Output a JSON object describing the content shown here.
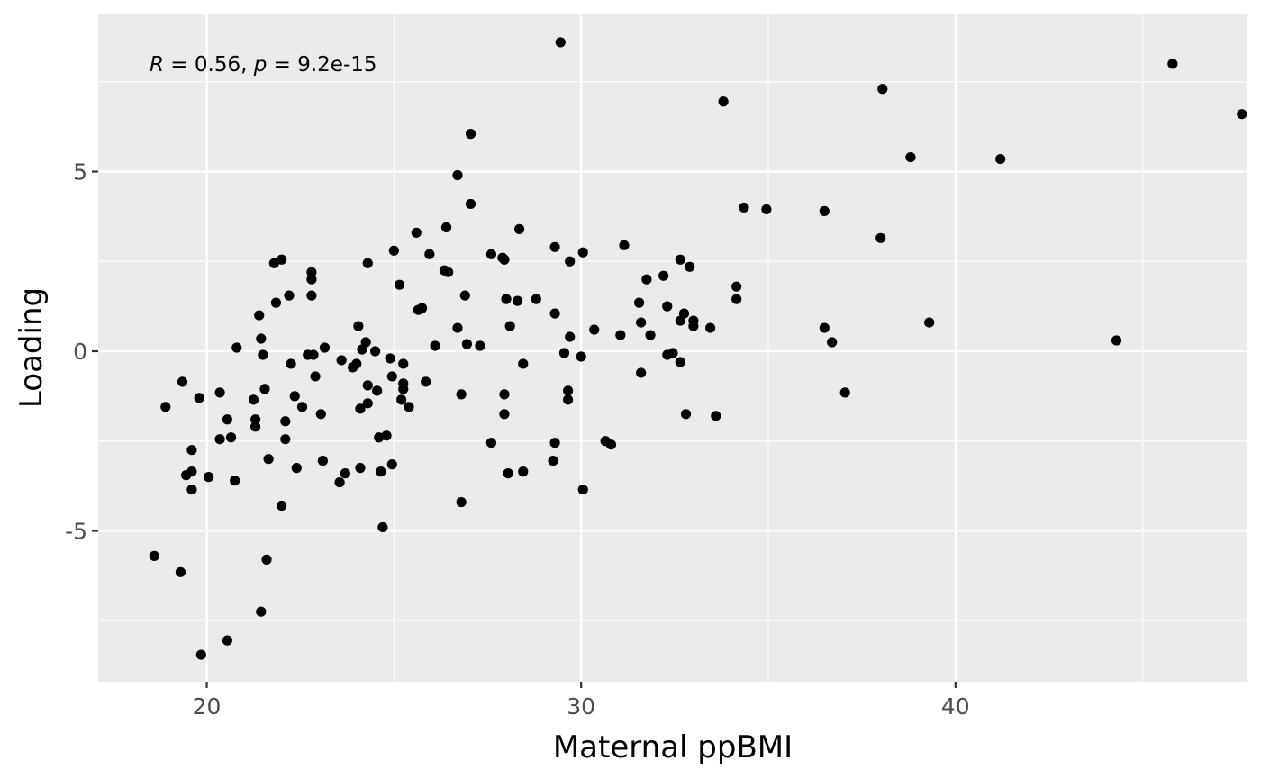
{
  "chart_data": {
    "type": "scatter",
    "title": "",
    "xlabel": "Maternal ppBMI",
    "ylabel": "Loading",
    "xlim": [
      17.1,
      47.8
    ],
    "ylim": [
      -9.2,
      9.4
    ],
    "x_ticks": [
      20,
      30,
      40
    ],
    "x_tick_labels": [
      "20",
      "30",
      "40"
    ],
    "y_ticks": [
      -5,
      0,
      5
    ],
    "y_tick_labels": [
      "-5",
      "0",
      "5"
    ],
    "grid": true,
    "panel_background": "#ebebeb",
    "grid_color": "#ffffff",
    "point_color": "#000000",
    "annotation": {
      "r_symbol": "R",
      "r_text": " = 0.56, ",
      "p_symbol": "p",
      "p_text": " = 9.2e-15"
    },
    "points": [
      [
        18.6,
        -5.7
      ],
      [
        18.9,
        -1.55
      ],
      [
        19.3,
        -6.15
      ],
      [
        19.35,
        -0.85
      ],
      [
        19.45,
        -3.45
      ],
      [
        19.6,
        -3.35
      ],
      [
        19.6,
        -2.75
      ],
      [
        19.6,
        -3.85
      ],
      [
        19.8,
        -1.3
      ],
      [
        19.85,
        -8.45
      ],
      [
        20.05,
        -3.5
      ],
      [
        20.35,
        -1.15
      ],
      [
        20.35,
        -2.45
      ],
      [
        20.55,
        -1.9
      ],
      [
        20.55,
        -8.05
      ],
      [
        20.65,
        -2.4
      ],
      [
        20.75,
        -3.6
      ],
      [
        20.8,
        0.1
      ],
      [
        21.25,
        -1.35
      ],
      [
        21.3,
        -1.9
      ],
      [
        21.3,
        -2.1
      ],
      [
        21.4,
        1.0
      ],
      [
        21.45,
        0.35
      ],
      [
        21.45,
        -7.25
      ],
      [
        21.5,
        -0.1
      ],
      [
        21.55,
        -1.05
      ],
      [
        21.6,
        -5.8
      ],
      [
        21.65,
        -3.0
      ],
      [
        21.8,
        2.45
      ],
      [
        21.85,
        1.35
      ],
      [
        22.0,
        2.55
      ],
      [
        22.0,
        -4.3
      ],
      [
        22.1,
        -1.95
      ],
      [
        22.1,
        -2.45
      ],
      [
        22.2,
        1.55
      ],
      [
        22.25,
        -0.35
      ],
      [
        22.35,
        -1.25
      ],
      [
        22.4,
        -3.25
      ],
      [
        22.55,
        -1.55
      ],
      [
        22.7,
        -0.1
      ],
      [
        22.8,
        2.2
      ],
      [
        22.8,
        2.0
      ],
      [
        22.8,
        1.55
      ],
      [
        22.85,
        -0.1
      ],
      [
        22.9,
        -0.7
      ],
      [
        23.05,
        -1.75
      ],
      [
        23.1,
        -3.05
      ],
      [
        23.15,
        0.1
      ],
      [
        23.55,
        -3.65
      ],
      [
        23.6,
        -0.25
      ],
      [
        23.7,
        -3.4
      ],
      [
        23.9,
        -0.45
      ],
      [
        24.0,
        -0.35
      ],
      [
        24.05,
        0.7
      ],
      [
        24.1,
        -1.6
      ],
      [
        24.1,
        -3.25
      ],
      [
        24.15,
        0.05
      ],
      [
        24.25,
        0.25
      ],
      [
        24.3,
        2.45
      ],
      [
        24.3,
        -0.95
      ],
      [
        24.3,
        -1.45
      ],
      [
        24.5,
        0.0
      ],
      [
        24.55,
        -1.1
      ],
      [
        24.6,
        -2.4
      ],
      [
        24.65,
        -3.35
      ],
      [
        24.7,
        -4.9
      ],
      [
        24.8,
        -2.35
      ],
      [
        24.9,
        -0.2
      ],
      [
        24.95,
        -3.15
      ],
      [
        24.95,
        -0.7
      ],
      [
        25.0,
        2.8
      ],
      [
        25.15,
        1.85
      ],
      [
        25.2,
        -1.35
      ],
      [
        25.25,
        -0.9
      ],
      [
        25.25,
        -0.35
      ],
      [
        25.25,
        -1.05
      ],
      [
        25.4,
        -1.55
      ],
      [
        25.6,
        3.3
      ],
      [
        25.65,
        1.15
      ],
      [
        25.75,
        1.2
      ],
      [
        25.85,
        -0.85
      ],
      [
        25.95,
        2.7
      ],
      [
        26.1,
        0.15
      ],
      [
        26.35,
        2.25
      ],
      [
        26.4,
        3.45
      ],
      [
        26.45,
        2.2
      ],
      [
        26.7,
        0.65
      ],
      [
        26.7,
        4.9
      ],
      [
        26.8,
        -1.2
      ],
      [
        26.8,
        -4.2
      ],
      [
        26.9,
        1.55
      ],
      [
        26.95,
        0.2
      ],
      [
        27.05,
        4.1
      ],
      [
        27.05,
        6.05
      ],
      [
        27.3,
        0.15
      ],
      [
        27.6,
        2.7
      ],
      [
        27.6,
        -2.55
      ],
      [
        27.9,
        2.6
      ],
      [
        27.95,
        2.55
      ],
      [
        27.95,
        -1.2
      ],
      [
        27.95,
        -1.75
      ],
      [
        28.0,
        1.45
      ],
      [
        28.05,
        -3.4
      ],
      [
        28.1,
        0.7
      ],
      [
        28.3,
        1.4
      ],
      [
        28.35,
        3.4
      ],
      [
        28.45,
        -0.35
      ],
      [
        28.45,
        -3.35
      ],
      [
        28.8,
        1.45
      ],
      [
        29.3,
        2.9
      ],
      [
        29.3,
        1.05
      ],
      [
        29.3,
        -2.55
      ],
      [
        29.25,
        -3.05
      ],
      [
        29.45,
        8.6
      ],
      [
        29.55,
        -0.05
      ],
      [
        29.65,
        -1.1
      ],
      [
        29.65,
        -1.35
      ],
      [
        29.7,
        0.4
      ],
      [
        29.7,
        2.5
      ],
      [
        30.0,
        -0.15
      ],
      [
        30.05,
        2.75
      ],
      [
        30.05,
        -3.85
      ],
      [
        30.35,
        0.6
      ],
      [
        30.65,
        -2.5
      ],
      [
        30.8,
        -2.6
      ],
      [
        31.05,
        0.45
      ],
      [
        31.15,
        2.95
      ],
      [
        31.55,
        1.35
      ],
      [
        31.6,
        0.8
      ],
      [
        31.6,
        -0.6
      ],
      [
        31.75,
        2.0
      ],
      [
        31.85,
        0.45
      ],
      [
        32.2,
        2.1
      ],
      [
        32.3,
        1.25
      ],
      [
        32.3,
        -0.1
      ],
      [
        32.45,
        -0.05
      ],
      [
        32.65,
        2.55
      ],
      [
        32.65,
        0.85
      ],
      [
        32.65,
        -0.3
      ],
      [
        32.75,
        1.05
      ],
      [
        32.8,
        -1.75
      ],
      [
        32.9,
        2.35
      ],
      [
        33.0,
        0.85
      ],
      [
        33.0,
        0.7
      ],
      [
        33.45,
        0.65
      ],
      [
        33.6,
        -1.8
      ],
      [
        33.8,
        6.95
      ],
      [
        34.15,
        1.8
      ],
      [
        34.15,
        1.45
      ],
      [
        34.35,
        4.0
      ],
      [
        34.95,
        3.95
      ],
      [
        36.5,
        3.9
      ],
      [
        36.5,
        0.65
      ],
      [
        36.7,
        0.25
      ],
      [
        37.05,
        -1.15
      ],
      [
        38.0,
        3.15
      ],
      [
        38.05,
        7.3
      ],
      [
        38.8,
        5.4
      ],
      [
        39.3,
        0.8
      ],
      [
        41.2,
        5.35
      ],
      [
        44.3,
        0.3
      ],
      [
        45.8,
        8.0
      ],
      [
        47.65,
        6.6
      ]
    ]
  }
}
